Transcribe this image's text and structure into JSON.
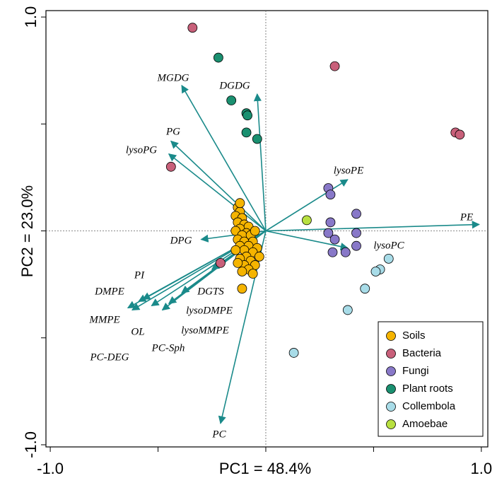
{
  "chart_data": {
    "type": "scatter",
    "xlabel": "PC1 = 48.4%",
    "ylabel": "PC2 = 23.0%",
    "xlim": [
      -1.02,
      1.03
    ],
    "ylim": [
      -1.01,
      1.03
    ],
    "xticks": [
      {
        "value": -1,
        "label": "-1.0"
      },
      {
        "value": -0.5,
        "label": null
      },
      {
        "value": 0,
        "label": null
      },
      {
        "value": 0.5,
        "label": null
      },
      {
        "value": 1,
        "label": "1.0"
      }
    ],
    "yticks": [
      {
        "value": -1,
        "label": "-1.0"
      },
      {
        "value": -0.5,
        "label": null
      },
      {
        "value": 0,
        "label": null
      },
      {
        "value": 0.5,
        "label": null
      },
      {
        "value": 1,
        "label": "1.0"
      }
    ],
    "legend": "lower right",
    "series": [
      {
        "name": "Soils",
        "color": "#f5b400",
        "x": [
          -0.13,
          -0.12,
          -0.14,
          -0.11,
          -0.13,
          -0.1,
          -0.08,
          -0.12,
          -0.14,
          -0.09,
          -0.11,
          -0.07,
          -0.13,
          -0.1,
          -0.06,
          -0.12,
          -0.08,
          -0.04,
          -0.1,
          -0.14,
          -0.06,
          -0.09,
          -0.03,
          -0.12,
          -0.07,
          -0.1,
          -0.05,
          -0.08,
          -0.11,
          -0.06,
          -0.11,
          -0.12,
          -0.05,
          -0.13
        ],
        "y": [
          0.11,
          0.09,
          0.07,
          0.06,
          0.04,
          0.03,
          0.02,
          0.01,
          0.0,
          -0.01,
          -0.02,
          -0.02,
          -0.04,
          -0.05,
          -0.05,
          -0.07,
          -0.07,
          -0.08,
          -0.09,
          -0.09,
          -0.1,
          -0.12,
          -0.12,
          -0.13,
          -0.14,
          -0.16,
          -0.16,
          -0.18,
          -0.19,
          -0.2,
          -0.27,
          0.13,
          0.0,
          -0.15
        ]
      },
      {
        "name": "Bacteria",
        "color": "#c8607a",
        "x": [
          -0.34,
          0.32,
          0.88,
          0.9,
          -0.44,
          -0.21
        ],
        "y": [
          0.95,
          0.77,
          0.46,
          0.45,
          0.3,
          -0.15
        ]
      },
      {
        "name": "Fungi",
        "color": "#8878c8",
        "x": [
          0.29,
          0.3,
          0.42,
          0.3,
          0.42,
          0.29,
          0.32,
          0.31,
          0.37,
          0.42
        ],
        "y": [
          0.2,
          0.17,
          0.08,
          0.04,
          -0.01,
          -0.01,
          -0.04,
          -0.1,
          -0.1,
          -0.07
        ]
      },
      {
        "name": "Plant roots",
        "color": "#1a9070",
        "x": [
          -0.22,
          -0.16,
          -0.09,
          -0.085,
          -0.09,
          -0.04
        ],
        "y": [
          0.81,
          0.61,
          0.55,
          0.54,
          0.46,
          0.43
        ]
      },
      {
        "name": "Collembola",
        "color": "#a8dce8",
        "x": [
          0.57,
          0.53,
          0.51,
          0.46,
          0.38,
          0.13
        ],
        "y": [
          -0.13,
          -0.18,
          -0.19,
          -0.27,
          -0.37,
          -0.57
        ]
      },
      {
        "name": "Amoebae",
        "color": "#b8e040",
        "x": [
          0.19
        ],
        "y": [
          0.05
        ]
      }
    ],
    "loadings_color": "#1a8a8a",
    "loadings": [
      {
        "name": "MGDG",
        "x": -0.39,
        "y": 0.68
      },
      {
        "name": "DGDG",
        "x": -0.04,
        "y": 0.64
      },
      {
        "name": "PG",
        "x": -0.44,
        "y": 0.42
      },
      {
        "name": "lysoPG",
        "x": -0.45,
        "y": 0.36
      },
      {
        "name": "lysoPE",
        "x": 0.38,
        "y": 0.24
      },
      {
        "name": "PE",
        "x": 0.99,
        "y": 0.03
      },
      {
        "name": "lysoPC",
        "x": 0.38,
        "y": -0.08
      },
      {
        "name": "DPG",
        "x": -0.3,
        "y": -0.04
      },
      {
        "name": "PI",
        "x": -0.57,
        "y": -0.32
      },
      {
        "name": "DMPE",
        "x": -0.59,
        "y": -0.33
      },
      {
        "name": "MMPE",
        "x": -0.64,
        "y": -0.36
      },
      {
        "name": "OL",
        "x": -0.53,
        "y": -0.35
      },
      {
        "name": "PC-DEG",
        "x": -0.62,
        "y": -0.37
      },
      {
        "name": "PC-Sph",
        "x": -0.48,
        "y": -0.37
      },
      {
        "name": "lysoMMPE",
        "x": -0.45,
        "y": -0.34
      },
      {
        "name": "lysoDMPE",
        "x": -0.39,
        "y": -0.29
      },
      {
        "name": "DGTS",
        "x": -0.25,
        "y": -0.18
      },
      {
        "name": "PC",
        "x": -0.21,
        "y": -0.9
      }
    ]
  }
}
